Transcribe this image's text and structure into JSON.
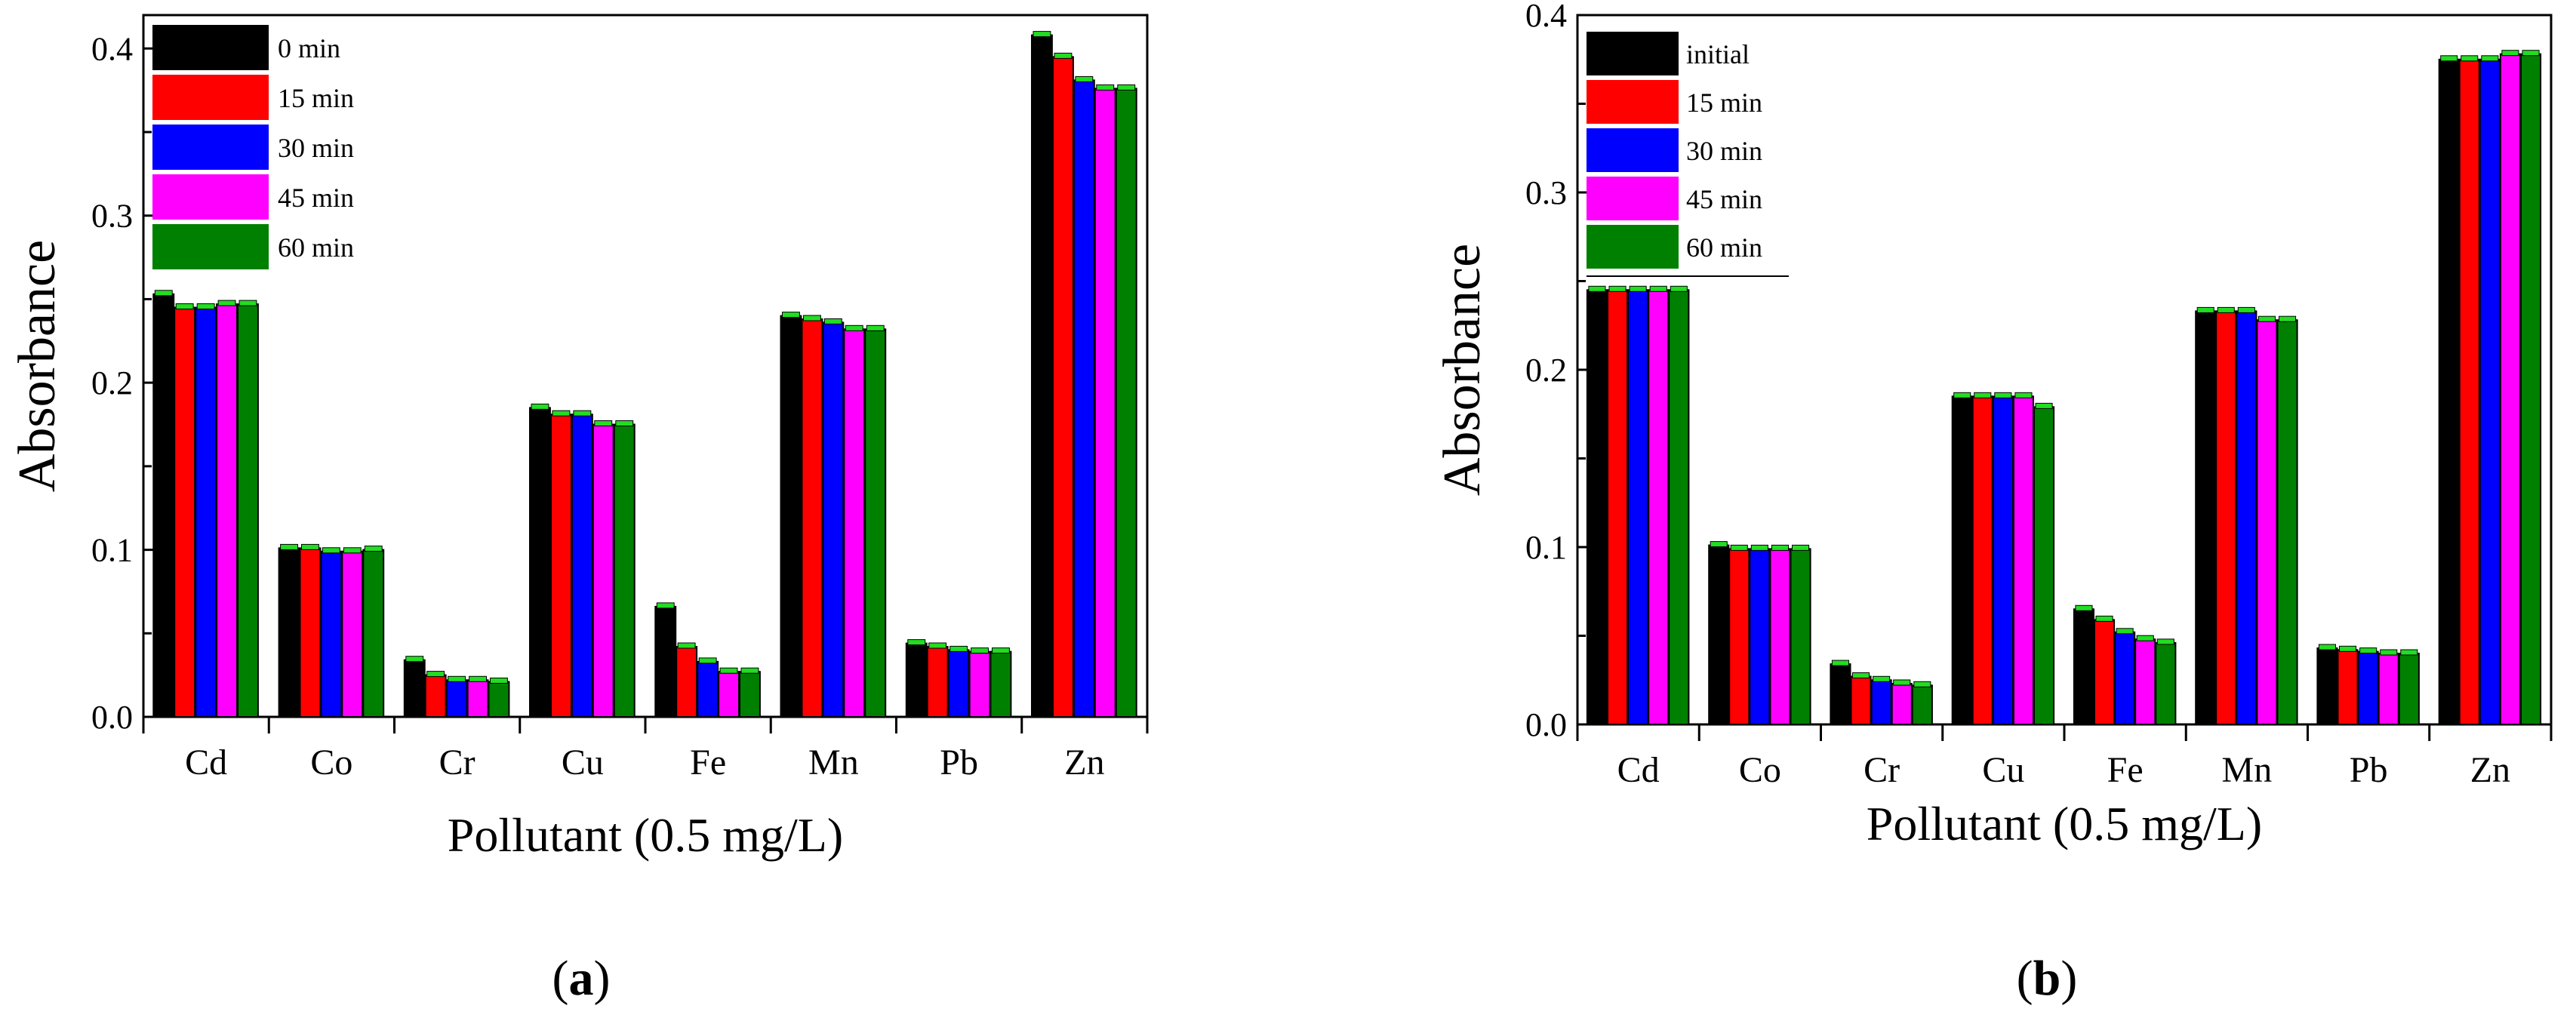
{
  "chart_data": [
    {
      "type": "bar",
      "panel_label": "a",
      "panel_label_parts": [
        "(",
        "a",
        ")"
      ],
      "xlabel": "Pollutant (0.5 mg/L)",
      "ylabel": "Absorbance",
      "ylim": [
        0.0,
        0.42
      ],
      "yticks": [
        0.0,
        0.1,
        0.2,
        0.3,
        0.4
      ],
      "ytick_labels": [
        "0.0",
        "0.1",
        "0.2",
        "0.3",
        "0.4"
      ],
      "grid": false,
      "legend_position": "top-left",
      "categories": [
        "Cd",
        "Co",
        "Cr",
        "Cu",
        "Fe",
        "Mn",
        "Pb",
        "Zn"
      ],
      "series": [
        {
          "name": "0 min",
          "color": "#000000",
          "values": [
            0.253,
            0.101,
            0.034,
            0.185,
            0.066,
            0.24,
            0.044,
            0.408
          ]
        },
        {
          "name": "15 min",
          "color": "#ff0000",
          "values": [
            0.245,
            0.101,
            0.025,
            0.181,
            0.042,
            0.238,
            0.042,
            0.395
          ]
        },
        {
          "name": "30 min",
          "color": "#0000ff",
          "values": [
            0.245,
            0.099,
            0.022,
            0.181,
            0.033,
            0.236,
            0.04,
            0.381
          ]
        },
        {
          "name": "45 min",
          "color": "#ff00ff",
          "values": [
            0.247,
            0.099,
            0.022,
            0.175,
            0.027,
            0.232,
            0.039,
            0.376
          ]
        },
        {
          "name": "60 min",
          "color": "#008000",
          "values": [
            0.247,
            0.1,
            0.021,
            0.175,
            0.027,
            0.232,
            0.039,
            0.376
          ]
        }
      ]
    },
    {
      "type": "bar",
      "panel_label": "b",
      "panel_label_parts": [
        "(",
        "b",
        ")"
      ],
      "xlabel": "Pollutant (0.5 mg/L)",
      "ylabel": "Absorbance",
      "ylim": [
        0.0,
        0.4
      ],
      "yticks": [
        0.0,
        0.1,
        0.2,
        0.3,
        0.4
      ],
      "ytick_labels": [
        "0.0",
        "0.1",
        "0.2",
        "0.3",
        "0.4"
      ],
      "grid": false,
      "legend_position": "top-left",
      "categories": [
        "Cd",
        "Co",
        "Cr",
        "Cu",
        "Fe",
        "Mn",
        "Pb",
        "Zn"
      ],
      "series": [
        {
          "name": "initial",
          "color": "#000000",
          "values": [
            0.245,
            0.101,
            0.034,
            0.185,
            0.065,
            0.233,
            0.043,
            0.375
          ]
        },
        {
          "name": "15 min",
          "color": "#ff0000",
          "values": [
            0.245,
            0.099,
            0.027,
            0.185,
            0.059,
            0.233,
            0.042,
            0.375
          ]
        },
        {
          "name": "30 min",
          "color": "#0000ff",
          "values": [
            0.245,
            0.099,
            0.025,
            0.185,
            0.052,
            0.233,
            0.041,
            0.375
          ]
        },
        {
          "name": "45 min",
          "color": "#ff00ff",
          "values": [
            0.245,
            0.099,
            0.023,
            0.185,
            0.048,
            0.228,
            0.04,
            0.378
          ]
        },
        {
          "name": "60 min",
          "color": "#008000",
          "values": [
            0.245,
            0.099,
            0.022,
            0.179,
            0.046,
            0.228,
            0.04,
            0.378
          ]
        }
      ]
    }
  ],
  "colors": {
    "errorbar_cap": "#22dd22",
    "axis": "#000000",
    "background": "#ffffff"
  }
}
